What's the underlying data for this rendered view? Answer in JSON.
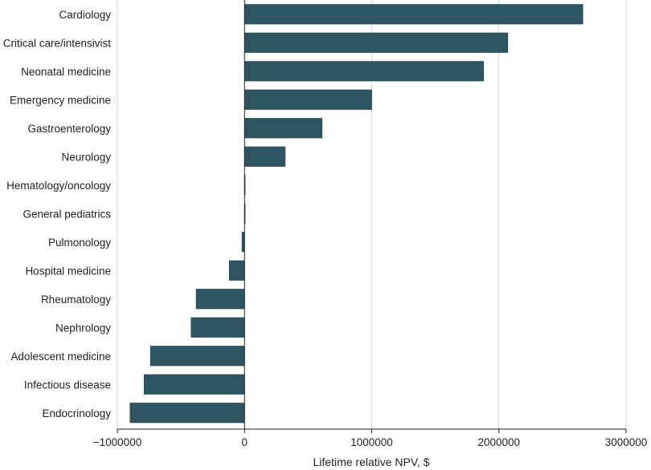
{
  "chart_data": {
    "type": "bar",
    "orientation": "horizontal",
    "categories": [
      "Cardiology",
      "Critical care/intensivist",
      "Neonatal medicine",
      "Emergency medicine",
      "Gastroenterology",
      "Neurology",
      "Hematology/oncology",
      "General pediatrics",
      "Pulmonology",
      "Hospital medicine",
      "Rheumatology",
      "Nephrology",
      "Adolescent medicine",
      "Infectious disease",
      "Endocrinology"
    ],
    "values": [
      2660000,
      2070000,
      1880000,
      1000000,
      610000,
      320000,
      5000,
      0,
      -20000,
      -120000,
      -380000,
      -420000,
      -740000,
      -790000,
      -900000
    ],
    "xlabel": "Lifetime relative NPV, $",
    "ylabel": "",
    "xlim": [
      -1000000,
      3000000
    ],
    "xticks": [
      -1000000,
      0,
      1000000,
      2000000,
      3000000
    ],
    "xtick_labels": [
      "−1000000",
      "0",
      "1000000",
      "2000000",
      "3000000"
    ],
    "grid": "vertical",
    "bar_color": "#2e5562"
  }
}
